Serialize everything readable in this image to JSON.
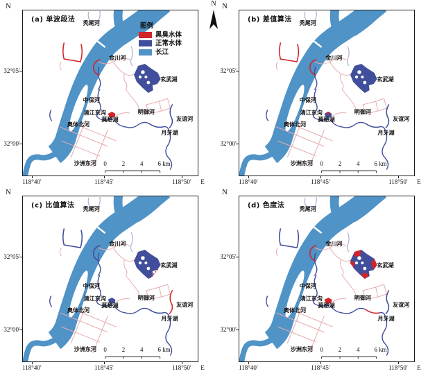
{
  "north_arrow": {
    "label": "N"
  },
  "axes": {
    "north_label": "N",
    "lat_ticks": [
      "32°05′",
      "32°00′"
    ],
    "lon_ticks": [
      "118°40′",
      "118°45′",
      "118°50′"
    ],
    "east_label": "E"
  },
  "legend": {
    "title": "图例",
    "items": [
      {
        "label": "黑臭水体",
        "color": "#d2252b"
      },
      {
        "label": "正常水体",
        "color": "#414e9c"
      },
      {
        "label": "长江",
        "color": "#4f93c7"
      }
    ]
  },
  "scalebar": {
    "labels": [
      "0",
      "2",
      "4",
      "6 km"
    ]
  },
  "map_labels": {
    "tuwei": "秃尾河",
    "jinchuan": "金川河",
    "xuanwu": "玄武湖",
    "zhongbao": "中保河",
    "qingjiang": "清江东沟",
    "mochou": "莫愁湖",
    "aoti": "奥体北河",
    "mingyu": "明御河",
    "youyi": "友谊河",
    "yueya": "月牙湖",
    "shazhou": "沙洲东河"
  },
  "colors": {
    "black_odor": "#d2252b",
    "normal_water": "#414e9c",
    "yangtze": "#4f93c7",
    "canal_pink": "#e7abad",
    "canal_purple": "#a9aed6",
    "frame": "#1a1a1a"
  },
  "panels": [
    {
      "id": "a",
      "title": "(a) 单波段法",
      "detections": {
        "canal_rect": "black",
        "jinchuan_arc": "black",
        "mochou_lake": "black",
        "xuanwu_lake": "normal",
        "youyi_river": "normal",
        "yueya_river": "normal"
      }
    },
    {
      "id": "b",
      "title": "(b) 差值算法",
      "detections": {
        "canal_rect": "black",
        "jinchuan_arc": "black",
        "mochou_lake": "mixed",
        "xuanwu_lake": "normal",
        "youyi_river": "normal",
        "yueya_river": "normal"
      }
    },
    {
      "id": "c",
      "title": "(c) 比值算法",
      "detections": {
        "canal_rect": "normal",
        "jinchuan_arc": "normal",
        "mochou_lake": "normal",
        "xuanwu_lake": "fringe",
        "youyi_river": "black",
        "yueya_river": "normal"
      }
    },
    {
      "id": "d",
      "title": "(d) 色度法",
      "detections": {
        "canal_rect": "normal",
        "jinchuan_arc": "black",
        "mochou_lake": "black",
        "xuanwu_lake": "patches",
        "youyi_river": "normal",
        "yueya_river": "black"
      }
    }
  ]
}
